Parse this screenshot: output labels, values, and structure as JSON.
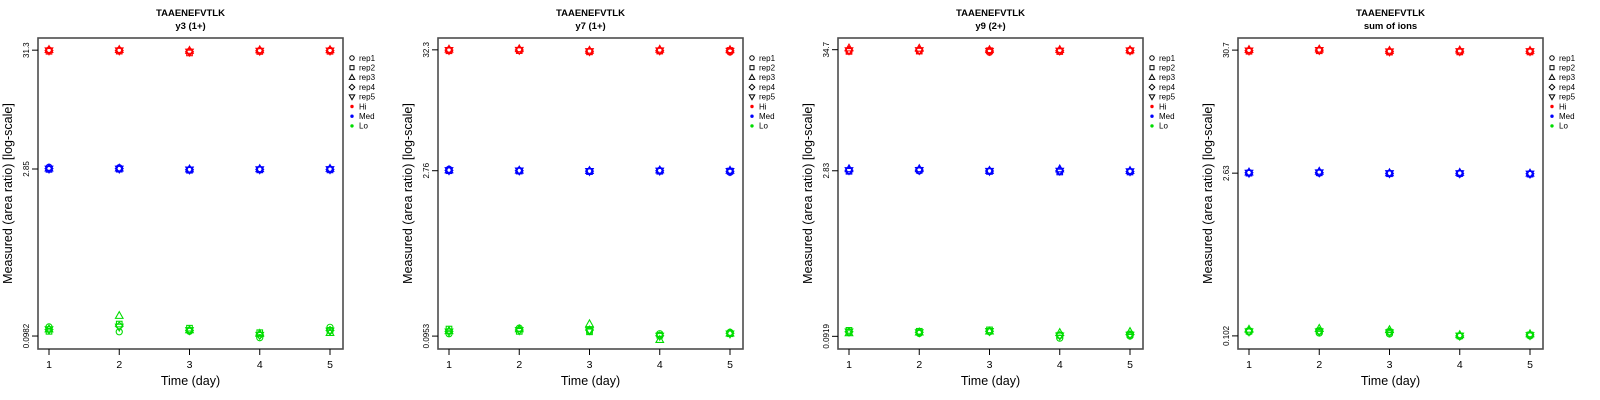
{
  "figure": {
    "peptide": "TAAENEFVTLK",
    "xlabel": "Time (day)",
    "ylabel": "Measured (area ratio) [log-scale]",
    "colors": {
      "hi": "#FF0000",
      "med": "#0000FF",
      "lo": "#00DD00",
      "frame": "#4d4d4d",
      "tick": "#000000"
    },
    "legend": {
      "reps": [
        {
          "label": "rep1",
          "marker": "circle"
        },
        {
          "label": "rep2",
          "marker": "square"
        },
        {
          "label": "rep3",
          "marker": "triangle-up"
        },
        {
          "label": "rep4",
          "marker": "diamond"
        },
        {
          "label": "rep5",
          "marker": "triangle-down"
        }
      ],
      "levels": [
        {
          "label": "Hi",
          "color": "#FF0000"
        },
        {
          "label": "Med",
          "color": "#0000FF"
        },
        {
          "label": "Lo",
          "color": "#00DD00"
        }
      ]
    }
  },
  "chart_data": [
    {
      "type": "scatter",
      "title": "TAAENEFVTLK",
      "subtitle": "y3 (1+)",
      "xlabel": "Time (day)",
      "ylabel": "Measured (area ratio) [log-scale]",
      "x": [
        1,
        2,
        3,
        4,
        5
      ],
      "ytick_labels": [
        "31.3",
        "2.85",
        "0.0982"
      ],
      "yticks": [
        31.3,
        2.85,
        0.0982
      ],
      "ylog_domain": [
        0.0756,
        40
      ],
      "rep_order": [
        "rep1",
        "rep2",
        "rep3",
        "rep4",
        "rep5"
      ],
      "series": [
        {
          "name": "Hi",
          "color": "#FF0000",
          "values_by_day": [
            [
              31.3,
              30.6,
              31.6,
              31.1,
              31.0
            ],
            [
              31.2,
              30.7,
              31.6,
              31.1,
              31.0
            ],
            [
              30.5,
              29.6,
              31.0,
              30.3,
              30.2
            ],
            [
              31.0,
              30.5,
              31.4,
              30.9,
              30.8
            ],
            [
              31.2,
              30.6,
              31.5,
              31.0,
              30.9
            ]
          ]
        },
        {
          "name": "Med",
          "color": "#0000FF",
          "values_by_day": [
            [
              2.95,
              2.83,
              2.89,
              2.87,
              2.86
            ],
            [
              2.92,
              2.84,
              2.89,
              2.87,
              2.86
            ],
            [
              2.8,
              2.78,
              2.84,
              2.81,
              2.81
            ],
            [
              2.82,
              2.8,
              2.86,
              2.83,
              2.82
            ],
            [
              2.84,
              2.8,
              2.87,
              2.83,
              2.83
            ]
          ]
        },
        {
          "name": "Lo",
          "color": "#00DD00",
          "values_by_day": [
            [
              0.118,
              0.108,
              0.113,
              0.112,
              0.112
            ],
            [
              0.107,
              0.125,
              0.148,
              0.12,
              0.118
            ],
            [
              0.108,
              0.115,
              0.111,
              0.11,
              0.11
            ],
            [
              0.095,
              0.105,
              0.103,
              0.1,
              0.1
            ],
            [
              0.117,
              0.11,
              0.105,
              0.11,
              0.109
            ]
          ]
        }
      ]
    },
    {
      "type": "scatter",
      "title": "TAAENEFVTLK",
      "subtitle": "y7 (1+)",
      "xlabel": "Time (day)",
      "ylabel": "Measured (area ratio) [log-scale]",
      "x": [
        1,
        2,
        3,
        4,
        5
      ],
      "ytick_labels": [
        "32.3",
        "2.76",
        "0.0953"
      ],
      "yticks": [
        32.3,
        2.76,
        0.0953
      ],
      "ylog_domain": [
        0.0733,
        41.1
      ],
      "rep_order": [
        "rep1",
        "rep2",
        "rep3",
        "rep4",
        "rep5"
      ],
      "series": [
        {
          "name": "Hi",
          "color": "#FF0000",
          "values_by_day": [
            [
              32.2,
              31.7,
              32.6,
              32.1,
              32.0
            ],
            [
              32.1,
              31.8,
              32.9,
              32.2,
              32.1
            ],
            [
              31.2,
              31.0,
              31.9,
              31.4,
              31.3
            ],
            [
              31.8,
              31.5,
              32.5,
              31.9,
              31.8
            ],
            [
              30.9,
              31.9,
              32.3,
              31.6,
              31.5
            ]
          ]
        },
        {
          "name": "Med",
          "color": "#0000FF",
          "values_by_day": [
            [
              2.84,
              2.76,
              2.8,
              2.78,
              2.78
            ],
            [
              2.77,
              2.74,
              2.78,
              2.76,
              2.76
            ],
            [
              2.72,
              2.71,
              2.76,
              2.74,
              2.73
            ],
            [
              2.77,
              2.73,
              2.79,
              2.76,
              2.75
            ],
            [
              2.67,
              2.74,
              2.77,
              2.73,
              2.73
            ]
          ]
        },
        {
          "name": "Lo",
          "color": "#00DD00",
          "values_by_day": [
            [
              0.1,
              0.11,
              0.106,
              0.105,
              0.104
            ],
            [
              0.112,
              0.105,
              0.11,
              0.108,
              0.107
            ],
            [
              0.106,
              0.104,
              0.122,
              0.108,
              0.107
            ],
            [
              0.1,
              0.097,
              0.0885,
              0.096,
              0.0955
            ],
            [
              0.103,
              0.1,
              0.101,
              0.101,
              0.1
            ]
          ]
        }
      ]
    },
    {
      "type": "scatter",
      "title": "TAAENEFVTLK",
      "subtitle": "y9 (2+)",
      "xlabel": "Time (day)",
      "ylabel": "Measured (area ratio) [log-scale]",
      "x": [
        1,
        2,
        3,
        4,
        5
      ],
      "ytick_labels": [
        "34.7",
        "2.83",
        "0.0919"
      ],
      "yticks": [
        34.7,
        2.83,
        0.0919
      ],
      "ylog_domain": [
        0.0707,
        44.2
      ],
      "rep_order": [
        "rep1",
        "rep2",
        "rep3",
        "rep4",
        "rep5"
      ],
      "series": [
        {
          "name": "Hi",
          "color": "#FF0000",
          "values_by_day": [
            [
              33.9,
              33.5,
              35.8,
              34.3,
              34.1
            ],
            [
              34.1,
              33.7,
              35.6,
              34.3,
              34.2
            ],
            [
              32.9,
              34.0,
              34.6,
              33.8,
              33.7
            ],
            [
              33.8,
              33.4,
              34.7,
              34.0,
              33.9
            ],
            [
              34.3,
              33.8,
              34.5,
              34.1,
              34.0
            ]
          ]
        },
        {
          "name": "Med",
          "color": "#0000FF",
          "values_by_day": [
            [
              2.84,
              2.8,
              2.94,
              2.86,
              2.85
            ],
            [
              2.82,
              2.86,
              2.94,
              2.87,
              2.86
            ],
            [
              2.8,
              2.79,
              2.84,
              2.82,
              2.81
            ],
            [
              2.81,
              2.76,
              2.93,
              2.83,
              2.82
            ],
            [
              2.78,
              2.76,
              2.83,
              2.79,
              2.79
            ]
          ]
        },
        {
          "name": "Lo",
          "color": "#00DD00",
          "values_by_day": [
            [
              0.1,
              0.104,
              0.0985,
              0.101,
              0.101
            ],
            [
              0.0975,
              0.102,
              0.1,
              0.1,
              0.0995
            ],
            [
              0.101,
              0.105,
              0.102,
              0.102,
              0.102
            ],
            [
              0.0885,
              0.094,
              0.099,
              0.0935,
              0.093
            ],
            [
              0.0925,
              0.0955,
              0.101,
              0.095,
              0.0945
            ]
          ]
        }
      ]
    },
    {
      "type": "scatter",
      "title": "TAAENEFVTLK",
      "subtitle": "sum of ions",
      "xlabel": "Time (day)",
      "ylabel": "Measured (area ratio) [log-scale]",
      "x": [
        1,
        2,
        3,
        4,
        5
      ],
      "ytick_labels": [
        "30.7",
        "2.63",
        "0.102"
      ],
      "yticks": [
        30.7,
        2.63,
        0.102
      ],
      "ylog_domain": [
        0.0785,
        39.1
      ],
      "rep_order": [
        "rep1",
        "rep2",
        "rep3",
        "rep4",
        "rep5"
      ],
      "series": [
        {
          "name": "Hi",
          "color": "#FF0000",
          "values_by_day": [
            [
              30.3,
              30.0,
              30.9,
              30.4,
              30.3
            ],
            [
              30.6,
              30.3,
              31.2,
              30.7,
              30.6
            ],
            [
              29.7,
              29.5,
              30.4,
              29.9,
              29.8
            ],
            [
              29.7,
              29.6,
              30.6,
              30.0,
              29.9
            ],
            [
              29.9,
              29.6,
              30.4,
              30.0,
              29.9
            ]
          ]
        },
        {
          "name": "Med",
          "color": "#0000FF",
          "values_by_day": [
            [
              2.65,
              2.63,
              2.68,
              2.65,
              2.64
            ],
            [
              2.63,
              2.65,
              2.72,
              2.66,
              2.66
            ],
            [
              2.61,
              2.6,
              2.64,
              2.62,
              2.62
            ],
            [
              2.59,
              2.61,
              2.66,
              2.62,
              2.61
            ],
            [
              2.57,
              2.58,
              2.62,
              2.6,
              2.59
            ]
          ]
        },
        {
          "name": "Lo",
          "color": "#00DD00",
          "values_by_day": [
            [
              0.11,
              0.112,
              0.116,
              0.112,
              0.111
            ],
            [
              0.108,
              0.112,
              0.118,
              0.112,
              0.111
            ],
            [
              0.106,
              0.11,
              0.115,
              0.11,
              0.109
            ],
            [
              0.101,
              0.102,
              0.104,
              0.102,
              0.102
            ],
            [
              0.102,
              0.104,
              0.106,
              0.104,
              0.103
            ]
          ]
        }
      ]
    }
  ]
}
